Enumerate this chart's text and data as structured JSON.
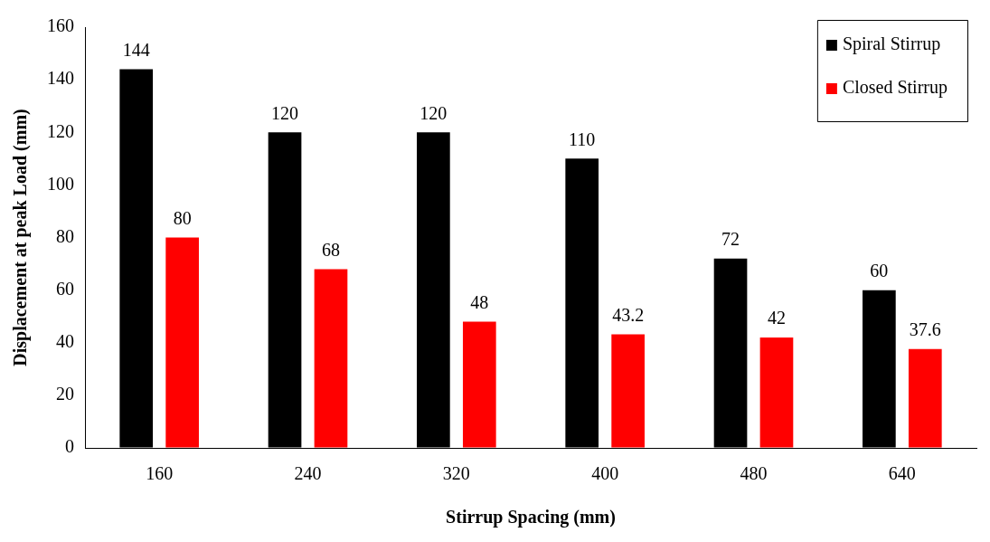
{
  "chart_data": {
    "type": "bar",
    "xlabel": "Stirrup Spacing (mm)",
    "ylabel": "Displacement at peak Load (mm)",
    "categories": [
      "160",
      "240",
      "320",
      "400",
      "480",
      "640"
    ],
    "series": [
      {
        "name": "Spiral Stirrup",
        "color": "#000000",
        "values": [
          144,
          120,
          120,
          110,
          72,
          60
        ]
      },
      {
        "name": "Closed Stirrup",
        "color": "#ff0000",
        "values": [
          80,
          68,
          48,
          43.2,
          42,
          37.6
        ]
      }
    ],
    "ylim": [
      0,
      160
    ],
    "yticks": [
      0,
      20,
      40,
      60,
      80,
      100,
      120,
      140,
      160
    ],
    "grid": false,
    "legend": "top right",
    "data_labels": true
  }
}
